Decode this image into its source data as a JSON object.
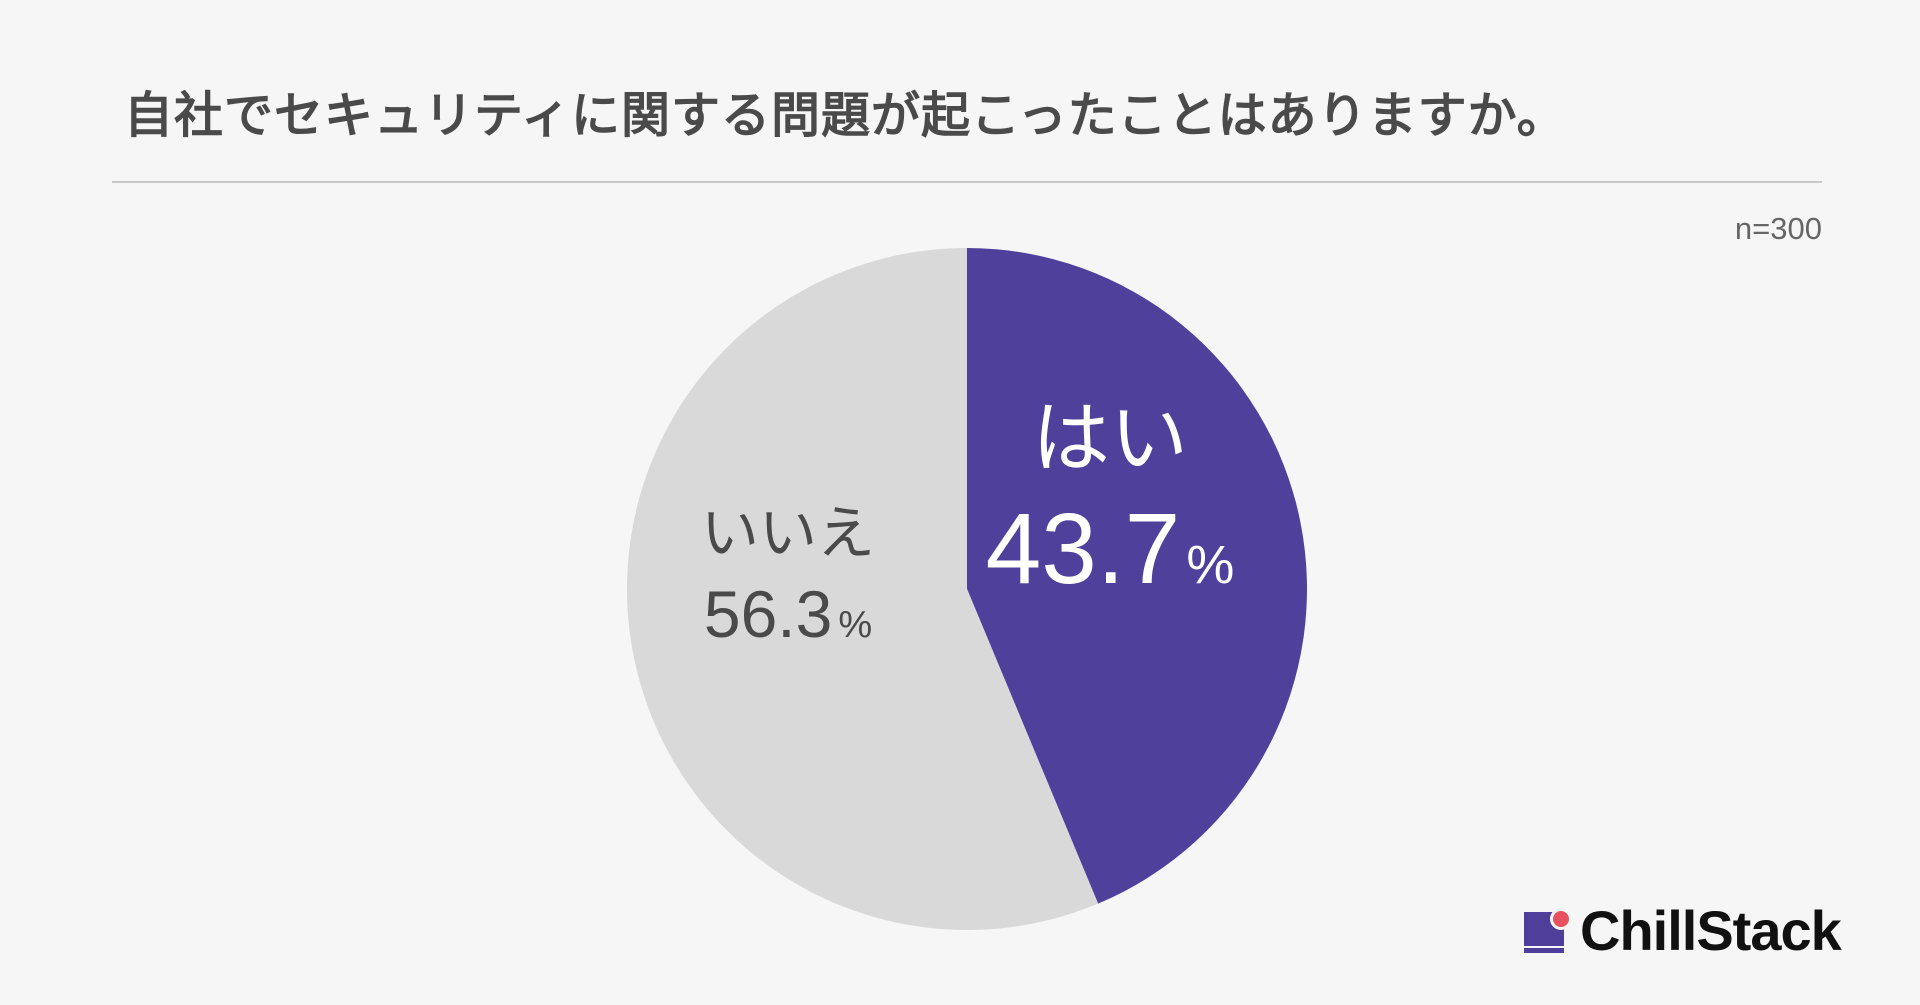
{
  "header": {
    "title": "自社でセキュリティに関する問題が起こったことはありますか。"
  },
  "sample_size": "n=300",
  "brand": {
    "name": "ChillStack",
    "colors": {
      "mark": "#4f3f9b",
      "dot": "#e8525f"
    }
  },
  "chart_data": {
    "type": "pie",
    "start_angle": "12 o'clock, clockwise",
    "slices": [
      {
        "label": "はい",
        "value": 43.7,
        "value_label": "43.7",
        "unit": "%",
        "color": "#4f419b",
        "text_color": "#ffffff"
      },
      {
        "label": "いいえ",
        "value": 56.3,
        "value_label": "56.3",
        "unit": "%",
        "color": "#d9d9d9",
        "text_color": "#4a4a4a"
      }
    ]
  }
}
